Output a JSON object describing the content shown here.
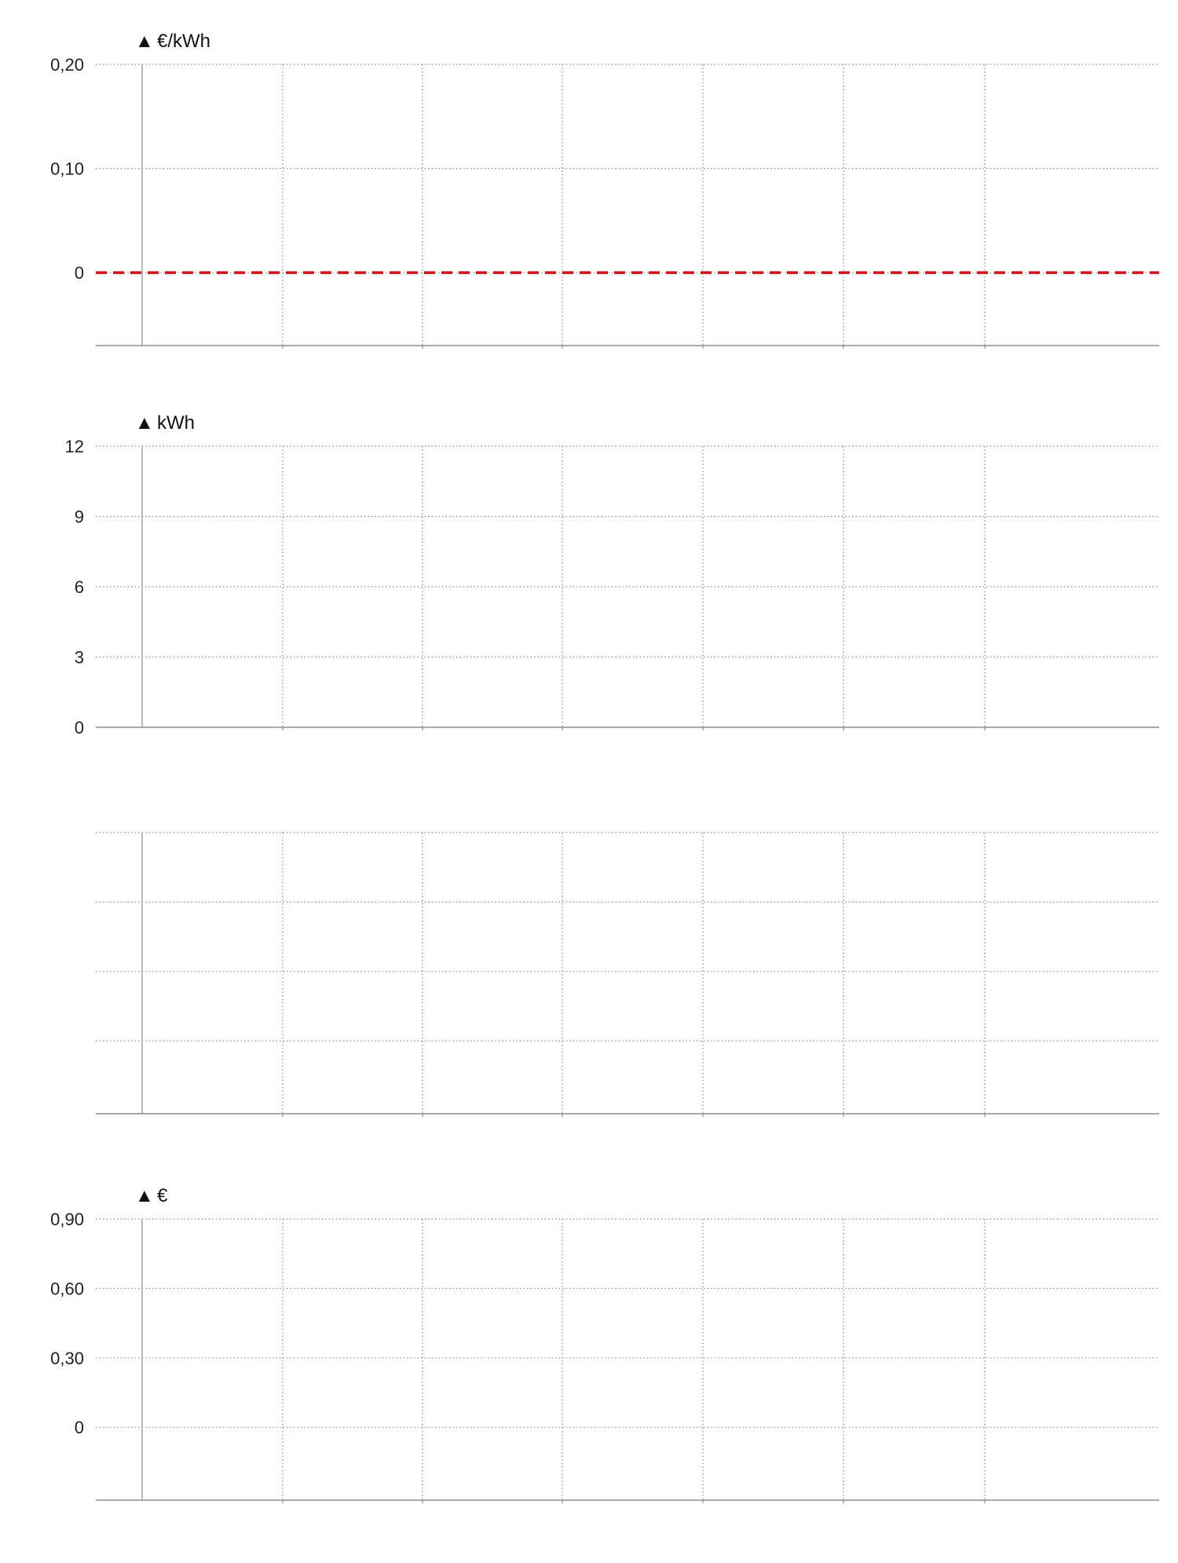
{
  "chart_data": [
    {
      "type": "line",
      "unit_label": "€/kWh",
      "yticks": [
        {
          "value": 0.2,
          "label": "0,20"
        },
        {
          "value": 0.1,
          "label": "0,10"
        },
        {
          "value": 0,
          "label": "0"
        }
      ],
      "ylim": [
        -0.07,
        0.2
      ],
      "reference_line": {
        "value": 0,
        "color": "#d0101a",
        "style": "dashed"
      },
      "grid": true,
      "columns": 7,
      "series": []
    },
    {
      "type": "line",
      "unit_label": "kWh",
      "yticks": [
        {
          "value": 12,
          "label": "12"
        },
        {
          "value": 9,
          "label": "9"
        },
        {
          "value": 6,
          "label": "6"
        },
        {
          "value": 3,
          "label": "3"
        },
        {
          "value": 0,
          "label": "0"
        }
      ],
      "ylim": [
        0,
        12
      ],
      "grid": true,
      "columns": 7,
      "series": []
    },
    {
      "type": "line",
      "unit_label": "",
      "yticks": [
        {
          "value": 3,
          "label": ""
        },
        {
          "value": 2,
          "label": ""
        },
        {
          "value": 1,
          "label": ""
        },
        {
          "value": 0,
          "label": ""
        }
      ],
      "ylim": [
        -1.05,
        3
      ],
      "grid": true,
      "columns": 7,
      "series": []
    },
    {
      "type": "line",
      "unit_label": "€",
      "yticks": [
        {
          "value": 0.9,
          "label": "0,90"
        },
        {
          "value": 0.6,
          "label": "0,60"
        },
        {
          "value": 0.3,
          "label": "0,30"
        },
        {
          "value": 0,
          "label": "0"
        }
      ],
      "ylim": [
        -0.315,
        0.9
      ],
      "grid": true,
      "columns": 7,
      "series": []
    }
  ],
  "colors": {
    "grid": "#8a8a8a",
    "axis": "#777777",
    "reference": "#d0101a",
    "text": "#222222"
  },
  "icons": {
    "axis_marker": "triangle-up-icon",
    "axis_marker_glyph": "▲"
  }
}
